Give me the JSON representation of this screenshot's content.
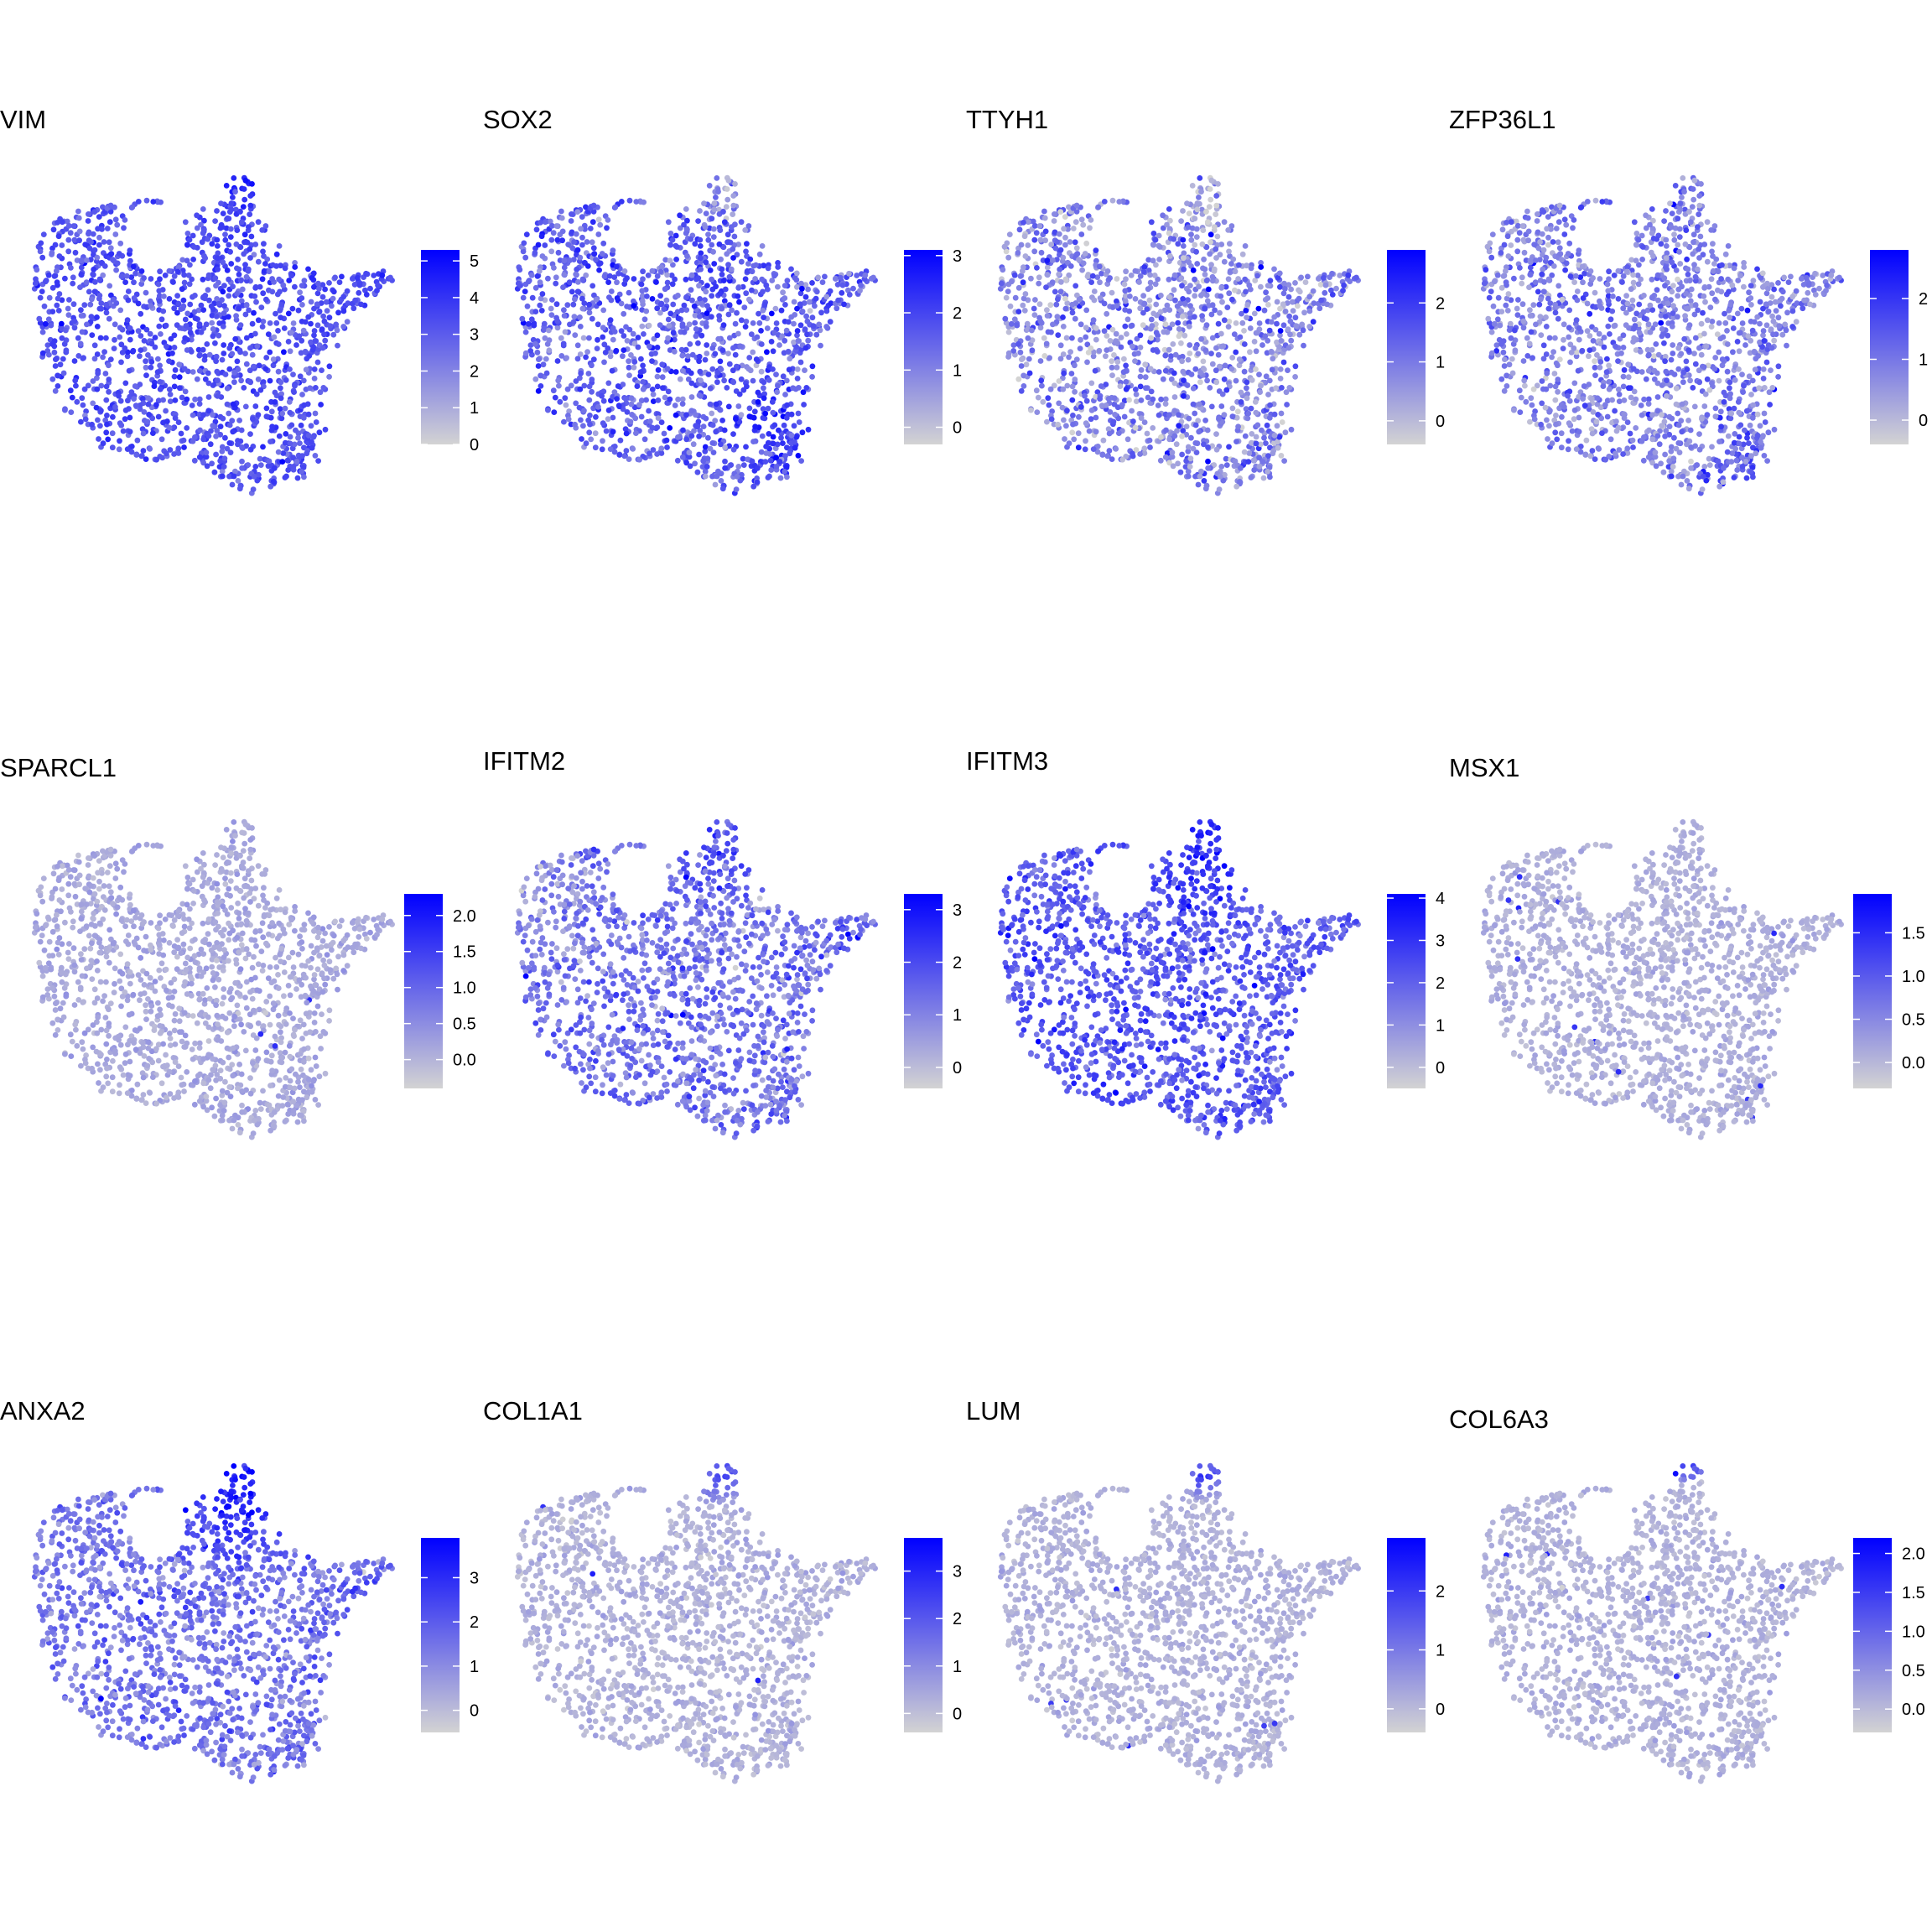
{
  "figure": {
    "color_low": "#d3d3d3",
    "color_high": "#0000ff"
  },
  "chart_data": [
    {
      "type": "scatter",
      "title": "VIM",
      "legend_range": [
        0,
        5.3
      ],
      "ticks": [
        "0",
        "1",
        "2",
        "3",
        "4",
        "5"
      ],
      "tick_values": [
        0,
        1,
        2,
        3,
        4,
        5
      ],
      "mean_level": 0.62,
      "level_spread": 0.1,
      "hot_regions": [
        {
          "x": 0.58,
          "y": 0.97,
          "r": 0.12,
          "add": 0.2
        }
      ],
      "cold_regions": []
    },
    {
      "type": "scatter",
      "title": "SOX2",
      "legend_range": [
        -0.3,
        3.1
      ],
      "ticks": [
        "0",
        "1",
        "2",
        "3"
      ],
      "tick_values": [
        0,
        1,
        2,
        3
      ],
      "mean_level": 0.55,
      "level_spread": 0.15,
      "hot_regions": [
        {
          "x": 0.75,
          "y": 0.2,
          "r": 0.25,
          "add": 0.1
        }
      ],
      "cold_regions": [
        {
          "x": 0.58,
          "y": 0.92,
          "r": 0.15,
          "add": -0.35
        }
      ]
    },
    {
      "type": "scatter",
      "title": "TTYH1",
      "legend_range": [
        -0.4,
        2.9
      ],
      "ticks": [
        "0",
        "1",
        "2"
      ],
      "tick_values": [
        0,
        1,
        2
      ],
      "mean_level": 0.38,
      "level_spread": 0.17,
      "hot_regions": [],
      "cold_regions": [
        {
          "x": 0.58,
          "y": 0.92,
          "r": 0.15,
          "add": -0.3
        }
      ]
    },
    {
      "type": "scatter",
      "title": "ZFP36L1",
      "legend_range": [
        -0.4,
        2.8
      ],
      "ticks": [
        "0",
        "1",
        "2"
      ],
      "tick_values": [
        0,
        1,
        2
      ],
      "mean_level": 0.4,
      "level_spread": 0.16,
      "hot_regions": [
        {
          "x": 0.75,
          "y": 0.1,
          "r": 0.2,
          "add": 0.1
        }
      ],
      "cold_regions": []
    },
    {
      "type": "scatter",
      "title": "SPARCL1",
      "legend_range": [
        -0.4,
        2.3
      ],
      "ticks": [
        "0.0",
        "0.5",
        "1.0",
        "1.5",
        "2.0"
      ],
      "tick_values": [
        0,
        0.5,
        1,
        1.5,
        2
      ],
      "mean_level": 0.2,
      "level_spread": 0.05,
      "hot_regions": [],
      "cold_regions": []
    },
    {
      "type": "scatter",
      "title": "IFITM2",
      "legend_range": [
        -0.4,
        3.3
      ],
      "ticks": [
        "0",
        "1",
        "2",
        "3"
      ],
      "tick_values": [
        0,
        1,
        2,
        3
      ],
      "mean_level": 0.45,
      "level_spread": 0.14,
      "hot_regions": [
        {
          "x": 0.58,
          "y": 0.9,
          "r": 0.2,
          "add": 0.12
        }
      ],
      "cold_regions": [
        {
          "x": 0.1,
          "y": 0.75,
          "r": 0.2,
          "add": -0.15
        }
      ]
    },
    {
      "type": "scatter",
      "title": "IFITM3",
      "legend_range": [
        -0.5,
        4.1
      ],
      "ticks": [
        "0",
        "1",
        "2",
        "3",
        "4"
      ],
      "tick_values": [
        0,
        1,
        2,
        3,
        4
      ],
      "mean_level": 0.58,
      "level_spread": 0.12,
      "hot_regions": [
        {
          "x": 0.58,
          "y": 0.9,
          "r": 0.25,
          "add": 0.15
        }
      ],
      "cold_regions": []
    },
    {
      "type": "scatter",
      "title": "MSX1",
      "legend_range": [
        -0.3,
        1.95
      ],
      "ticks": [
        "0.0",
        "0.5",
        "1.0",
        "1.5"
      ],
      "tick_values": [
        0,
        0.5,
        1,
        1.5
      ],
      "mean_level": 0.17,
      "level_spread": 0.04,
      "hot_regions": [],
      "cold_regions": []
    },
    {
      "type": "scatter",
      "title": "ANXA2",
      "legend_range": [
        -0.5,
        3.9
      ],
      "ticks": [
        "0",
        "1",
        "2",
        "3"
      ],
      "tick_values": [
        0,
        1,
        2,
        3
      ],
      "mean_level": 0.45,
      "level_spread": 0.12,
      "hot_regions": [
        {
          "x": 0.58,
          "y": 0.9,
          "r": 0.28,
          "add": 0.3
        },
        {
          "x": 0.95,
          "y": 0.55,
          "r": 0.12,
          "add": 0.15
        }
      ],
      "cold_regions": []
    },
    {
      "type": "scatter",
      "title": "COL1A1",
      "legend_range": [
        -0.4,
        3.7
      ],
      "ticks": [
        "0",
        "1",
        "2",
        "3"
      ],
      "tick_values": [
        0,
        1,
        2,
        3
      ],
      "mean_level": 0.16,
      "level_spread": 0.05,
      "hot_regions": [
        {
          "x": 0.58,
          "y": 0.95,
          "r": 0.1,
          "add": 0.35
        }
      ],
      "cold_regions": []
    },
    {
      "type": "scatter",
      "title": "LUM",
      "legend_range": [
        -0.4,
        2.9
      ],
      "ticks": [
        "0",
        "1",
        "2"
      ],
      "tick_values": [
        0,
        1,
        2
      ],
      "mean_level": 0.16,
      "level_spread": 0.04,
      "hot_regions": [
        {
          "x": 0.58,
          "y": 0.95,
          "r": 0.08,
          "add": 0.4
        }
      ],
      "cold_regions": []
    },
    {
      "type": "scatter",
      "title": "COL6A3",
      "legend_range": [
        -0.3,
        2.2
      ],
      "ticks": [
        "0.0",
        "0.5",
        "1.0",
        "1.5",
        "2.0"
      ],
      "tick_values": [
        0,
        0.5,
        1,
        1.5,
        2
      ],
      "mean_level": 0.16,
      "level_spread": 0.04,
      "hot_regions": [
        {
          "x": 0.58,
          "y": 0.98,
          "r": 0.06,
          "add": 0.45
        }
      ],
      "cold_regions": []
    }
  ]
}
